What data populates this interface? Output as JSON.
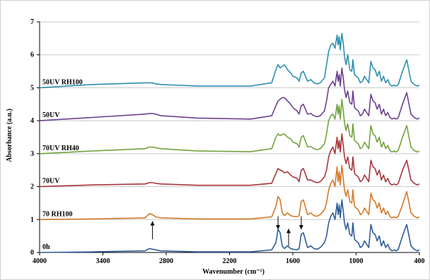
{
  "chart_data": {
    "type": "line",
    "title": "",
    "xlabel": "Wavenumber (cm⁻¹)",
    "ylabel": "Absorbance (a.u.)",
    "xlim": [
      4000,
      400
    ],
    "x_reversed": true,
    "ylim": [
      0,
      7
    ],
    "x_ticks": [
      "4000",
      "3400",
      "2800",
      "2200",
      "1600",
      "1000",
      "400"
    ],
    "y_ticks": [
      "0",
      "1",
      "2",
      "3",
      "4",
      "5",
      "6",
      "7"
    ],
    "grid": "horizontal",
    "legend": "none (series labels placed above each trace on the left)",
    "series": [
      {
        "name": "0h",
        "baseline": 0,
        "color": "#2e5c9a",
        "x": [
          4000,
          3500,
          3000,
          2960,
          2930,
          2900,
          2850,
          2500,
          2000,
          1800,
          1760,
          1740,
          1720,
          1700,
          1680,
          1650,
          1620,
          1600,
          1560,
          1540,
          1520,
          1500,
          1460,
          1430,
          1400,
          1370,
          1340,
          1300,
          1280,
          1260,
          1240,
          1220,
          1200,
          1180,
          1170,
          1160,
          1150,
          1135,
          1120,
          1110,
          1095,
          1080,
          1060,
          1040,
          1030,
          1015,
          1000,
          980,
          960,
          940,
          920,
          900,
          880,
          860,
          840,
          820,
          800,
          780,
          760,
          740,
          720,
          700,
          680,
          660,
          640,
          620,
          600,
          560,
          520,
          480,
          450,
          420,
          400
        ],
        "y": [
          0,
          0.02,
          0.05,
          0.12,
          0.1,
          0.08,
          0.05,
          0.02,
          0.02,
          0.08,
          0.3,
          0.7,
          0.6,
          0.2,
          0.12,
          0.2,
          0.12,
          0.1,
          0.08,
          0.12,
          0.55,
          0.6,
          0.15,
          0.2,
          0.12,
          0.1,
          0.15,
          0.3,
          0.5,
          0.9,
          1.1,
          1.2,
          1.0,
          1.5,
          1.15,
          1.45,
          1.05,
          1.6,
          1.2,
          0.9,
          0.7,
          0.9,
          0.55,
          0.5,
          0.9,
          0.4,
          0.35,
          0.3,
          0.15,
          0.2,
          0.35,
          0.25,
          0.15,
          0.85,
          0.6,
          0.55,
          0.35,
          0.5,
          0.2,
          0.35,
          0.15,
          0.25,
          0.1,
          0.05,
          0.08,
          0.05,
          0.1,
          0.5,
          0.85,
          0.2,
          0.1,
          0.05,
          0.08
        ]
      },
      {
        "name": "70 RH100",
        "baseline": 1,
        "color": "#d17a2a",
        "x": [
          4000,
          3500,
          3000,
          2960,
          2930,
          2900,
          2850,
          2500,
          2000,
          1800,
          1760,
          1740,
          1720,
          1700,
          1680,
          1650,
          1620,
          1600,
          1560,
          1540,
          1520,
          1500,
          1460,
          1430,
          1400,
          1370,
          1340,
          1300,
          1280,
          1260,
          1240,
          1220,
          1200,
          1180,
          1170,
          1160,
          1150,
          1135,
          1120,
          1110,
          1095,
          1080,
          1060,
          1040,
          1030,
          1015,
          1000,
          980,
          960,
          940,
          920,
          900,
          880,
          860,
          840,
          820,
          800,
          780,
          760,
          740,
          720,
          700,
          680,
          660,
          640,
          620,
          600,
          560,
          520,
          480,
          450,
          420,
          400
        ],
        "y": [
          0,
          0.02,
          0.05,
          0.18,
          0.15,
          0.08,
          0.05,
          0.02,
          0.02,
          0.08,
          0.4,
          0.7,
          0.6,
          0.2,
          0.12,
          0.2,
          0.12,
          0.1,
          0.08,
          0.12,
          0.55,
          0.6,
          0.15,
          0.2,
          0.12,
          0.1,
          0.15,
          0.3,
          0.5,
          0.9,
          1.1,
          1.2,
          1.0,
          1.6,
          1.15,
          1.45,
          1.05,
          1.65,
          1.2,
          0.9,
          0.7,
          0.9,
          0.55,
          0.5,
          0.9,
          0.4,
          0.35,
          0.3,
          0.15,
          0.2,
          0.35,
          0.25,
          0.15,
          0.8,
          0.6,
          0.55,
          0.35,
          0.5,
          0.2,
          0.35,
          0.15,
          0.25,
          0.1,
          0.05,
          0.08,
          0.05,
          0.1,
          0.45,
          0.85,
          0.2,
          0.1,
          0.05,
          0.08
        ]
      },
      {
        "name": "70UV",
        "baseline": 2,
        "color": "#a8353a",
        "x": [
          4000,
          3500,
          3000,
          2960,
          2930,
          2900,
          2850,
          2500,
          2000,
          1800,
          1760,
          1740,
          1720,
          1700,
          1680,
          1650,
          1620,
          1600,
          1560,
          1540,
          1520,
          1500,
          1460,
          1430,
          1400,
          1370,
          1340,
          1300,
          1280,
          1260,
          1240,
          1220,
          1200,
          1180,
          1170,
          1160,
          1150,
          1135,
          1120,
          1110,
          1095,
          1080,
          1060,
          1040,
          1030,
          1015,
          1000,
          980,
          960,
          940,
          920,
          900,
          880,
          860,
          840,
          820,
          800,
          780,
          760,
          740,
          720,
          700,
          680,
          660,
          640,
          620,
          600,
          560,
          520,
          480,
          450,
          420,
          400
        ],
        "y": [
          0,
          0.05,
          0.08,
          0.12,
          0.12,
          0.1,
          0.08,
          0.04,
          0.04,
          0.1,
          0.4,
          0.55,
          0.5,
          0.48,
          0.42,
          0.45,
          0.35,
          0.3,
          0.25,
          0.15,
          0.5,
          0.55,
          0.2,
          0.2,
          0.15,
          0.12,
          0.15,
          0.3,
          0.5,
          0.9,
          1.1,
          1.2,
          1.0,
          1.5,
          1.15,
          1.4,
          1.05,
          1.6,
          1.2,
          0.9,
          0.7,
          0.9,
          0.55,
          0.5,
          0.9,
          0.4,
          0.35,
          0.3,
          0.15,
          0.2,
          0.35,
          0.25,
          0.15,
          0.8,
          0.6,
          0.55,
          0.35,
          0.5,
          0.2,
          0.35,
          0.15,
          0.25,
          0.1,
          0.05,
          0.08,
          0.05,
          0.1,
          0.5,
          0.8,
          0.2,
          0.1,
          0.05,
          0.08
        ]
      },
      {
        "name": "70UV RH40",
        "baseline": 3,
        "color": "#72a33c",
        "x": [
          4000,
          3500,
          3000,
          2960,
          2930,
          2900,
          2850,
          2500,
          2000,
          1800,
          1760,
          1740,
          1720,
          1700,
          1680,
          1650,
          1620,
          1600,
          1560,
          1540,
          1520,
          1500,
          1460,
          1430,
          1400,
          1370,
          1340,
          1300,
          1280,
          1260,
          1240,
          1220,
          1200,
          1180,
          1170,
          1160,
          1150,
          1135,
          1120,
          1110,
          1095,
          1080,
          1060,
          1040,
          1030,
          1015,
          1000,
          980,
          960,
          940,
          920,
          900,
          880,
          860,
          840,
          820,
          800,
          780,
          760,
          740,
          720,
          700,
          680,
          660,
          640,
          620,
          600,
          560,
          520,
          480,
          450,
          420,
          400
        ],
        "y": [
          0,
          0.08,
          0.15,
          0.2,
          0.2,
          0.18,
          0.15,
          0.08,
          0.06,
          0.15,
          0.5,
          0.6,
          0.55,
          0.58,
          0.6,
          0.5,
          0.45,
          0.35,
          0.3,
          0.2,
          0.5,
          0.55,
          0.2,
          0.22,
          0.15,
          0.12,
          0.15,
          0.3,
          0.6,
          1.0,
          1.15,
          1.2,
          1.05,
          1.5,
          1.2,
          1.45,
          1.05,
          1.65,
          1.25,
          0.95,
          0.7,
          0.9,
          0.55,
          0.5,
          0.9,
          0.4,
          0.35,
          0.3,
          0.15,
          0.2,
          0.35,
          0.25,
          0.15,
          0.85,
          0.6,
          0.55,
          0.35,
          0.5,
          0.2,
          0.35,
          0.15,
          0.25,
          0.1,
          0.05,
          0.08,
          0.05,
          0.1,
          0.5,
          0.85,
          0.2,
          0.1,
          0.05,
          0.08
        ]
      },
      {
        "name": "50UV",
        "baseline": 4,
        "color": "#6d3f8f",
        "x": [
          4000,
          3500,
          3000,
          2960,
          2930,
          2900,
          2850,
          2500,
          2000,
          1800,
          1760,
          1740,
          1720,
          1700,
          1680,
          1650,
          1620,
          1600,
          1560,
          1540,
          1520,
          1500,
          1460,
          1430,
          1400,
          1370,
          1340,
          1300,
          1280,
          1260,
          1240,
          1220,
          1200,
          1180,
          1170,
          1160,
          1150,
          1135,
          1120,
          1110,
          1095,
          1080,
          1060,
          1040,
          1030,
          1015,
          1000,
          980,
          960,
          940,
          920,
          900,
          880,
          860,
          840,
          820,
          800,
          780,
          760,
          740,
          720,
          700,
          680,
          660,
          640,
          620,
          600,
          560,
          520,
          480,
          450,
          420,
          400
        ],
        "y": [
          0,
          0.1,
          0.2,
          0.22,
          0.22,
          0.2,
          0.15,
          0.08,
          0.05,
          0.15,
          0.45,
          0.6,
          0.65,
          0.7,
          0.7,
          0.6,
          0.5,
          0.4,
          0.3,
          0.2,
          0.45,
          0.5,
          0.2,
          0.22,
          0.15,
          0.12,
          0.15,
          0.3,
          0.6,
          1.0,
          1.1,
          1.2,
          1.05,
          1.5,
          1.2,
          1.4,
          1.05,
          1.6,
          1.25,
          0.95,
          0.7,
          0.9,
          0.55,
          0.5,
          0.9,
          0.4,
          0.35,
          0.3,
          0.15,
          0.2,
          0.35,
          0.25,
          0.15,
          0.8,
          0.6,
          0.55,
          0.35,
          0.5,
          0.2,
          0.35,
          0.15,
          0.25,
          0.1,
          0.05,
          0.08,
          0.05,
          0.1,
          0.5,
          0.85,
          0.2,
          0.1,
          0.05,
          0.08
        ]
      },
      {
        "name": "50UV RH100",
        "baseline": 5,
        "color": "#2b8fb0",
        "x": [
          4000,
          3500,
          3000,
          2960,
          2930,
          2900,
          2850,
          2500,
          2000,
          1800,
          1760,
          1740,
          1720,
          1700,
          1680,
          1650,
          1620,
          1600,
          1560,
          1540,
          1520,
          1500,
          1460,
          1430,
          1400,
          1370,
          1340,
          1300,
          1280,
          1260,
          1240,
          1220,
          1200,
          1180,
          1170,
          1160,
          1150,
          1135,
          1120,
          1110,
          1095,
          1080,
          1060,
          1040,
          1030,
          1015,
          1000,
          980,
          960,
          940,
          920,
          900,
          880,
          860,
          840,
          820,
          800,
          780,
          760,
          740,
          720,
          700,
          680,
          660,
          640,
          620,
          600,
          560,
          520,
          480,
          450,
          420,
          400
        ],
        "y": [
          0,
          0.1,
          0.15,
          0.15,
          0.15,
          0.12,
          0.1,
          0.05,
          0.05,
          0.15,
          0.55,
          0.7,
          0.6,
          0.65,
          0.7,
          0.55,
          0.45,
          0.35,
          0.3,
          0.2,
          0.45,
          0.5,
          0.2,
          0.25,
          0.15,
          0.12,
          0.15,
          0.3,
          0.7,
          1.1,
          1.3,
          1.35,
          1.2,
          1.6,
          1.3,
          1.55,
          1.15,
          1.65,
          1.3,
          0.95,
          0.7,
          1.0,
          0.55,
          0.5,
          0.85,
          0.4,
          0.35,
          0.3,
          0.15,
          0.2,
          0.35,
          0.25,
          0.15,
          0.8,
          0.6,
          0.55,
          0.35,
          0.5,
          0.2,
          0.35,
          0.15,
          0.25,
          0.1,
          0.05,
          0.08,
          0.05,
          0.1,
          0.5,
          0.85,
          0.2,
          0.1,
          0.05,
          0.08
        ]
      }
    ],
    "annotations": [
      {
        "type": "arrow-up",
        "x": 2930,
        "y_from": 0.4,
        "y_to": 0.95
      },
      {
        "type": "arrow-down",
        "x": 1740,
        "y_from": 1.1,
        "y_to": 0.7
      },
      {
        "type": "arrow-up",
        "x": 1640,
        "y_from": 0.2,
        "y_to": 0.72
      },
      {
        "type": "arrow-down",
        "x": 1520,
        "y_from": 1.1,
        "y_to": 0.7
      }
    ]
  }
}
